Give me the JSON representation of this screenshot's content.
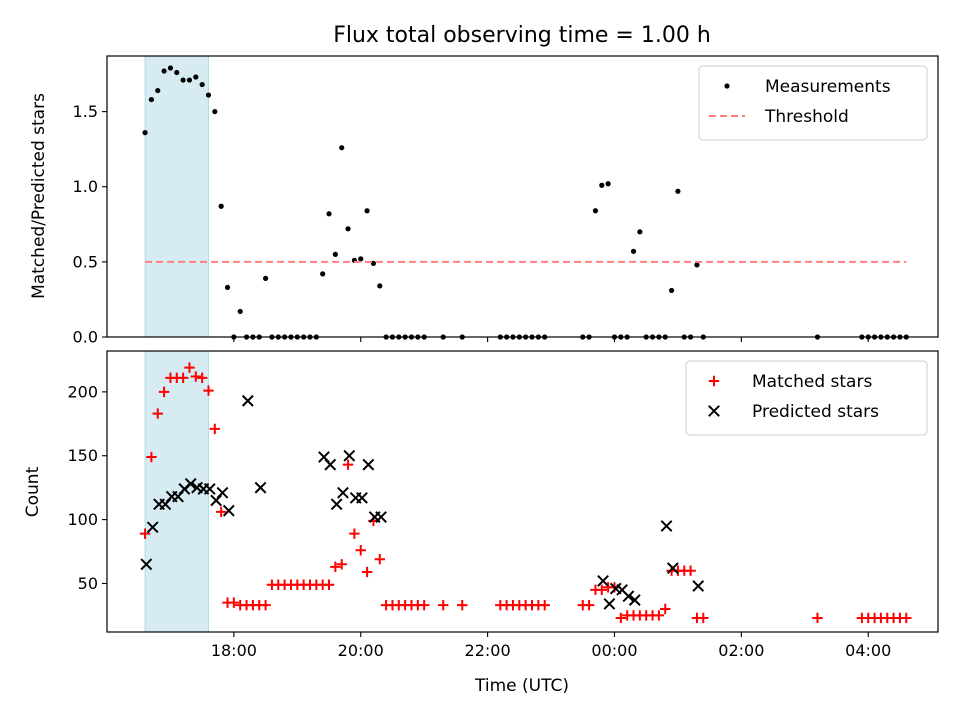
{
  "chart_data": [
    {
      "type": "scatter",
      "title": "Flux total observing time = 1.00 h",
      "xlabel": "",
      "ylabel": "Matched/Predicted stars",
      "xlim": [
        16.0,
        29.1
      ],
      "ylim": [
        0,
        1.87
      ],
      "legend_position": "upper-right",
      "highlight_span": [
        16.6,
        17.6
      ],
      "yticks": [
        0.0,
        0.5,
        1.0,
        1.5
      ],
      "ytick_labels": [
        "0.0",
        "0.5",
        "1.0",
        "1.5"
      ],
      "xticks": [
        18,
        20,
        22,
        24,
        26,
        28
      ],
      "series": [
        {
          "name": "Measurements",
          "marker": "dot",
          "color": "#000000",
          "x": [
            16.6,
            16.7,
            16.8,
            16.9,
            17.0,
            17.1,
            17.2,
            17.3,
            17.4,
            17.5,
            17.6,
            17.7,
            17.8,
            17.9,
            18.0,
            18.1,
            18.2,
            18.3,
            18.4,
            18.5,
            18.6,
            18.7,
            18.8,
            18.9,
            19.0,
            19.1,
            19.2,
            19.3,
            19.4,
            19.5,
            19.6,
            19.7,
            19.8,
            19.9,
            20.0,
            20.1,
            20.2,
            20.3,
            20.4,
            20.5,
            20.6,
            20.7,
            20.8,
            20.9,
            21.0,
            21.3,
            21.6,
            22.2,
            22.3,
            22.4,
            22.5,
            22.6,
            22.7,
            22.8,
            22.9,
            23.5,
            23.6,
            23.7,
            23.8,
            23.9,
            24.0,
            24.1,
            24.2,
            24.3,
            24.4,
            24.5,
            24.6,
            24.7,
            24.8,
            24.9,
            25.0,
            25.1,
            25.2,
            25.3,
            25.4,
            27.2,
            27.9,
            28.0,
            28.1,
            28.2,
            28.3,
            28.4,
            28.5,
            28.6
          ],
          "y": [
            1.36,
            1.58,
            1.64,
            1.77,
            1.79,
            1.76,
            1.71,
            1.71,
            1.73,
            1.68,
            1.61,
            1.5,
            0.87,
            0.33,
            0.0,
            0.17,
            0.0,
            0.0,
            0.0,
            0.39,
            0.0,
            0.0,
            0.0,
            0.0,
            0.0,
            0.0,
            0.0,
            0.0,
            0.42,
            0.82,
            0.55,
            1.26,
            0.72,
            0.51,
            0.52,
            0.84,
            0.49,
            0.34,
            0.0,
            0.0,
            0.0,
            0.0,
            0.0,
            0.0,
            0.0,
            0.0,
            0.0,
            0.0,
            0.0,
            0.0,
            0.0,
            0.0,
            0.0,
            0.0,
            0.0,
            0.0,
            0.0,
            0.84,
            1.01,
            1.02,
            0.0,
            0.0,
            0.0,
            0.57,
            0.7,
            0.0,
            0.0,
            0.0,
            0.0,
            0.31,
            0.97,
            0.0,
            0.0,
            0.48,
            0.0,
            0.0,
            0.0,
            0.0,
            0.0,
            0.0,
            0.0,
            0.0,
            0.0,
            0.0
          ]
        },
        {
          "name": "Threshold",
          "marker": "dashed-line",
          "color": "#ff7f7f",
          "x": [
            16.6,
            28.6
          ],
          "y": [
            0.5,
            0.5
          ]
        }
      ]
    },
    {
      "type": "scatter",
      "title": "",
      "xlabel": "Time (UTC)",
      "ylabel": "Count",
      "xlim": [
        16.0,
        29.1
      ],
      "ylim": [
        12,
        232
      ],
      "legend_position": "upper-right",
      "highlight_span": [
        16.6,
        17.6
      ],
      "yticks": [
        50,
        100,
        150,
        200
      ],
      "ytick_labels": [
        "50",
        "100",
        "150",
        "200"
      ],
      "xticks": [
        18,
        20,
        22,
        24,
        26,
        28
      ],
      "xtick_labels": [
        "18:00",
        "20:00",
        "22:00",
        "00:00",
        "02:00",
        "04:00"
      ],
      "series": [
        {
          "name": "Matched stars",
          "marker": "plus",
          "color": "#ff0000",
          "x": [
            16.6,
            16.7,
            16.8,
            16.9,
            17.0,
            17.1,
            17.2,
            17.3,
            17.4,
            17.5,
            17.6,
            17.7,
            17.8,
            17.9,
            18.0,
            18.1,
            18.2,
            18.3,
            18.4,
            18.5,
            18.6,
            18.7,
            18.8,
            18.9,
            19.0,
            19.1,
            19.2,
            19.3,
            19.4,
            19.5,
            19.6,
            19.7,
            19.8,
            19.9,
            20.0,
            20.1,
            20.2,
            20.3,
            20.4,
            20.5,
            20.6,
            20.7,
            20.8,
            20.9,
            21.0,
            21.3,
            21.6,
            22.2,
            22.3,
            22.4,
            22.5,
            22.6,
            22.7,
            22.8,
            22.9,
            23.5,
            23.6,
            23.7,
            23.8,
            23.9,
            24.0,
            24.1,
            24.2,
            24.3,
            24.4,
            24.5,
            24.6,
            24.7,
            24.8,
            24.9,
            25.0,
            25.1,
            25.2,
            25.3,
            25.4,
            27.2,
            27.9,
            28.0,
            28.1,
            28.2,
            28.3,
            28.4,
            28.5,
            28.6
          ],
          "y": [
            89,
            149,
            183,
            200,
            211,
            211,
            211,
            219,
            212,
            211,
            201,
            171,
            106,
            35,
            35,
            33,
            33,
            33,
            33,
            33,
            49,
            49,
            49,
            49,
            49,
            49,
            49,
            49,
            49,
            49,
            63,
            65,
            143,
            89,
            76,
            59,
            99,
            69,
            33,
            33,
            33,
            33,
            33,
            33,
            33,
            33,
            33,
            33,
            33,
            33,
            33,
            33,
            33,
            33,
            33,
            33,
            33,
            45,
            45,
            47,
            47,
            23,
            25,
            25,
            25,
            25,
            25,
            25,
            30,
            60,
            60,
            60,
            60,
            23,
            23,
            23,
            23,
            23,
            23,
            23,
            23,
            23,
            23,
            23
          ]
        },
        {
          "name": "Predicted stars",
          "marker": "x",
          "color": "#000000",
          "x": [
            16.62,
            16.72,
            16.82,
            16.92,
            17.02,
            17.12,
            17.22,
            17.32,
            17.42,
            17.52,
            17.62,
            17.72,
            17.82,
            17.92,
            18.22,
            18.42,
            19.42,
            19.52,
            19.62,
            19.72,
            19.82,
            19.92,
            20.02,
            20.12,
            20.22,
            20.32,
            23.82,
            23.92,
            24.02,
            24.12,
            24.22,
            24.32,
            24.82,
            24.92,
            25.32
          ],
          "y": [
            65,
            94,
            112,
            112,
            118,
            118,
            124,
            128,
            125,
            124,
            124,
            115,
            121,
            107,
            193,
            125,
            149,
            143,
            112,
            121,
            150,
            117,
            117,
            143,
            102,
            102,
            52,
            34,
            46,
            45,
            40,
            37,
            95,
            62,
            48
          ]
        }
      ]
    }
  ]
}
